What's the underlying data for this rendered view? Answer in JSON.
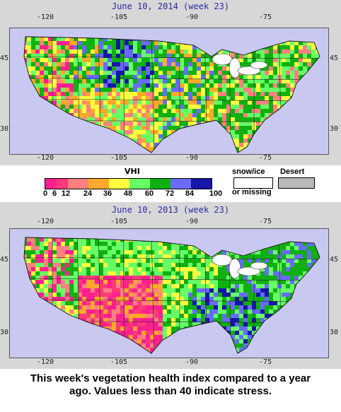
{
  "maps": [
    {
      "id": "top",
      "title": "June 10, 2014 (week 23)",
      "lon_labels": [
        "-120",
        "-105",
        "-90",
        "-75"
      ],
      "lat_labels": [
        "45",
        "30"
      ],
      "dominant": "mixed green / yellow with pink stress in the west, blue in the northern plains"
    },
    {
      "id": "bottom",
      "title": "June 10, 2013 (week 23)",
      "lon_labels": [
        "-120",
        "-105",
        "-90",
        "-75"
      ],
      "lat_labels": [
        "45",
        "30"
      ],
      "dominant": "pink stress in the southwest, green east, blue in the southeast"
    }
  ],
  "legend": {
    "title": "VHI",
    "colors": [
      "#ff1f8f",
      "#ff3a7a",
      "#ff8080",
      "#ffa82a",
      "#ffff40",
      "#66ff66",
      "#10b010",
      "#6a6aff",
      "#1616a8"
    ],
    "labels": [
      "0",
      "6",
      "12",
      "24",
      "36",
      "48",
      "60",
      "72",
      "84",
      "100"
    ],
    "snow_label_1": "snow/ice",
    "snow_label_2": "or missing",
    "desert_label": "Desert",
    "snow_color": "#ffffff",
    "desert_color": "#b8b8b8"
  },
  "caption_line1": "This week's vegetation health index compared to a year",
  "caption_line2": "ago. Values less than 40 indicate stress.",
  "colors": {
    "water": "#c8c8f0",
    "panel": "#d7d7d7",
    "title": "#2a2aa8"
  }
}
